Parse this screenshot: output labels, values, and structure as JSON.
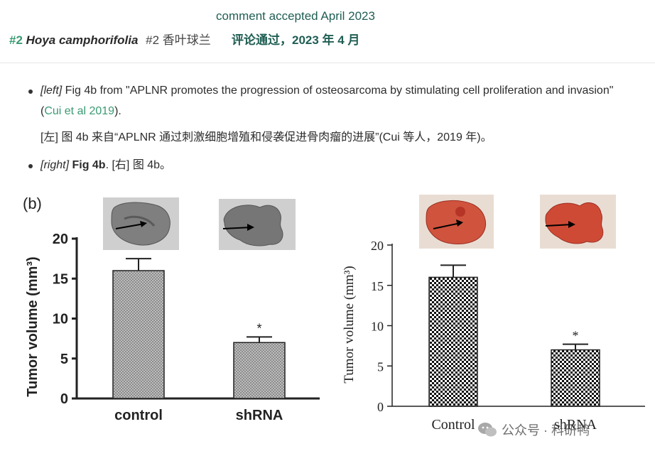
{
  "header": {
    "accepted_en": "comment accepted April 2023",
    "entry_number": "#2",
    "species": "Hoya camphorifolia",
    "entry_cn": "#2 香叶球兰",
    "accepted_cn": "评论通过，2023 年 4 月"
  },
  "notes": [
    {
      "tag": "[left]",
      "text_before": " Fig 4b from \"APLNR promotes the progression of osteosarcoma by stimulating cell proliferation and invasion\" (",
      "link": "Cui et al 2019",
      "text_after": ").",
      "translation": "[左] 图 4b 来自“APLNR 通过刺激细胞增殖和侵袭促进骨肉瘤的进展”(Cui 等人，2019 年)。"
    },
    {
      "tag": "[right]",
      "bold": "Fig 4b",
      "text_after": ".",
      "translation": " [右] 图 4b。"
    }
  ],
  "chart_data": [
    {
      "type": "bar",
      "panel_label": "(b)",
      "categories": [
        "control",
        "shRNA"
      ],
      "values": [
        16,
        7
      ],
      "errors": [
        1.5,
        0.7
      ],
      "significance": [
        "",
        "*"
      ],
      "ylabel": "Tumor volume (mm³)",
      "ylim": [
        0,
        20
      ],
      "yticks": [
        "0",
        "5",
        "10",
        "15",
        "20"
      ],
      "bar_fill": "gray grid pattern",
      "photos": [
        "grayscale tumor with arrow",
        "grayscale tumor with arrow"
      ]
    },
    {
      "type": "bar",
      "categories": [
        "Control",
        "shRNA"
      ],
      "values": [
        16,
        7
      ],
      "errors": [
        1.5,
        0.7
      ],
      "significance": [
        "",
        "*"
      ],
      "ylabel": "Tumor volume (mm³)",
      "ylim": [
        0,
        20
      ],
      "yticks": [
        "0",
        "5",
        "10",
        "15",
        "20"
      ],
      "bar_fill": "checkerboard pattern",
      "photos": [
        "red tumor with arrow",
        "red tumor with arrow"
      ]
    }
  ],
  "watermark": "公众号 · 科研鸭",
  "colors": {
    "accent": "#3a9a73",
    "heading": "#1f5e53"
  }
}
